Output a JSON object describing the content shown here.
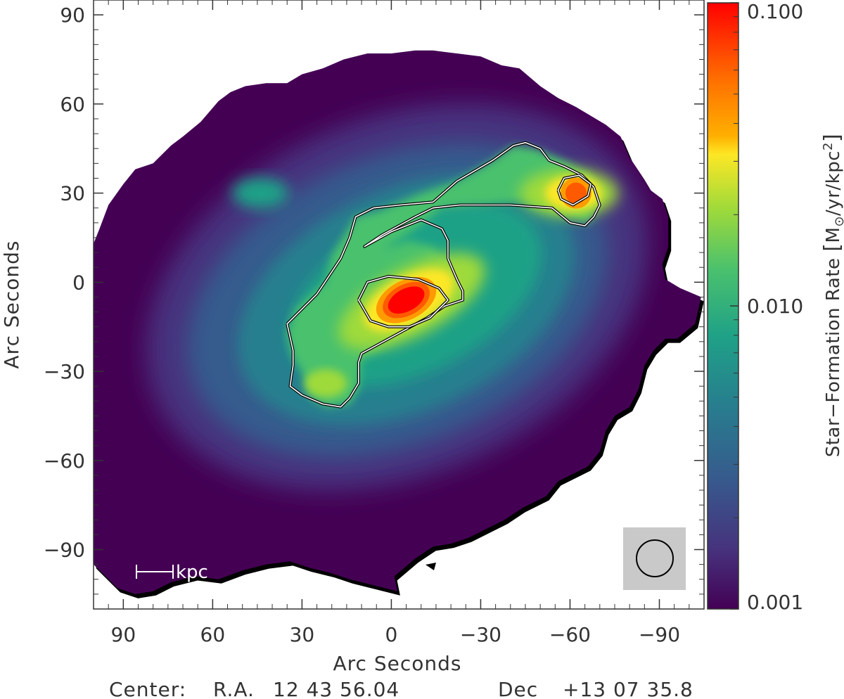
{
  "chart_data": {
    "type": "heatmap",
    "xlabel": "Arc Seconds",
    "ylabel": "Arc Seconds",
    "x_range": [
      100,
      -105
    ],
    "y_range": [
      -110,
      95
    ],
    "x_ticks": [
      90,
      60,
      30,
      0,
      -30,
      -60,
      -90
    ],
    "y_ticks": [
      90,
      60,
      30,
      0,
      -30,
      -60,
      -90
    ],
    "x_tick_labels": [
      "90",
      "60",
      "30",
      "0",
      "−30",
      "−60",
      "−90"
    ],
    "y_tick_labels": [
      "90",
      "60",
      "30",
      "0",
      "−30",
      "−60",
      "−90"
    ],
    "colorbar": {
      "title_prefix": "Star−Formation Rate ",
      "title_unit_base": "M",
      "title_unit_sub": "⊙",
      "title_unit_rest": "/yr/kpc",
      "title_unit_sup": "2",
      "scale": "log",
      "range": [
        0.001,
        0.1
      ],
      "tick_labels": [
        {
          "value": 0.1,
          "label": "0.100"
        },
        {
          "value": 0.01,
          "label": "0.010"
        },
        {
          "value": 0.001,
          "label": "0.001"
        }
      ],
      "colormap": "viridis-extended",
      "colormap_colors": [
        "#440154",
        "#46337e",
        "#365c8d",
        "#277f8e",
        "#1fa187",
        "#4ac16d",
        "#9fda3a",
        "#fde725",
        "#ff9b00",
        "#ff5a00",
        "#ff0000"
      ]
    },
    "contour_color": "#000000",
    "scale_bar_label": "kpc",
    "beam": {
      "x_arcsec": -90,
      "y_arcsec": -93,
      "shape": "circle"
    },
    "peaks": [
      {
        "name": "nucleus",
        "x_arcsec": -5,
        "y_arcsec": -6,
        "value": 0.09
      },
      {
        "name": "northwest-knot",
        "x_arcsec": -62,
        "y_arcsec": 30,
        "value": 0.07
      },
      {
        "name": "southeast-knot",
        "x_arcsec": 22,
        "y_arcsec": -34,
        "value": 0.03
      }
    ],
    "footer": {
      "center_label": "Center:",
      "ra_label": "R.A.",
      "ra_value": "12 43 56.04",
      "dec_label": "Dec",
      "dec_value": "+13 07 35.8"
    }
  }
}
